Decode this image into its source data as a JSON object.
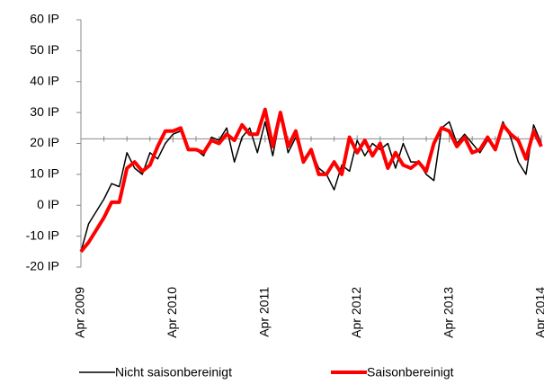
{
  "chart_data": {
    "type": "line",
    "categories": [
      "Apr 2009",
      null,
      null,
      null,
      null,
      null,
      null,
      null,
      null,
      null,
      null,
      null,
      "Apr 2010",
      null,
      null,
      null,
      null,
      null,
      null,
      null,
      null,
      null,
      null,
      null,
      "Apr 2011",
      null,
      null,
      null,
      null,
      null,
      null,
      null,
      null,
      null,
      null,
      null,
      "Apr 2012",
      null,
      null,
      null,
      null,
      null,
      null,
      null,
      null,
      null,
      null,
      null,
      "Apr 2013",
      null,
      null,
      null,
      null,
      null,
      null,
      null,
      null,
      null,
      null,
      null,
      "Apr 2014"
    ],
    "series": [
      {
        "name": "Nicht saisonbereinigt",
        "color": "#000000",
        "width": 1.5,
        "values": [
          -15,
          -6,
          -2,
          2,
          7,
          6,
          17,
          12,
          10,
          17,
          15,
          20,
          23,
          24,
          18,
          18,
          16,
          22,
          21,
          25,
          14,
          22,
          25,
          17,
          27,
          16,
          29,
          17,
          22,
          15,
          18,
          12,
          10,
          5,
          13,
          11,
          21,
          16,
          20,
          18,
          20,
          12,
          20,
          14,
          14,
          10,
          8,
          25,
          27,
          20,
          23,
          20,
          17,
          21,
          19,
          27,
          22,
          14,
          10,
          26,
          20
        ]
      },
      {
        "name": "Saisonbereinigt",
        "color": "#ff0000",
        "width": 4,
        "values": [
          -15,
          -12,
          -8,
          -4,
          1,
          1,
          12,
          14,
          11,
          13,
          19,
          24,
          24,
          25,
          18,
          18,
          17,
          21,
          20,
          23,
          21,
          26,
          23,
          23,
          31,
          19,
          30,
          19,
          24,
          14,
          18,
          10,
          10,
          14,
          10,
          22,
          17,
          21,
          16,
          20,
          12,
          17,
          13,
          12,
          14,
          11,
          20,
          25,
          24,
          19,
          22,
          17,
          18,
          22,
          18,
          26,
          23,
          21,
          15,
          24,
          19
        ]
      }
    ],
    "ylim": [
      -20,
      60
    ],
    "yticks": [
      {
        "value": -20,
        "label": "-20 IP"
      },
      {
        "value": -10,
        "label": "-10 IP"
      },
      {
        "value": 0,
        "label": "0 IP"
      },
      {
        "value": 10,
        "label": "10 IP"
      },
      {
        "value": 20,
        "label": "20 IP"
      },
      {
        "value": 30,
        "label": "30 IP"
      },
      {
        "value": 40,
        "label": "40 IP"
      },
      {
        "value": 50,
        "label": "50 IP"
      },
      {
        "value": 60,
        "label": "60 IP"
      }
    ],
    "x_axis_crossing": 21.5,
    "legend": "bottom"
  }
}
